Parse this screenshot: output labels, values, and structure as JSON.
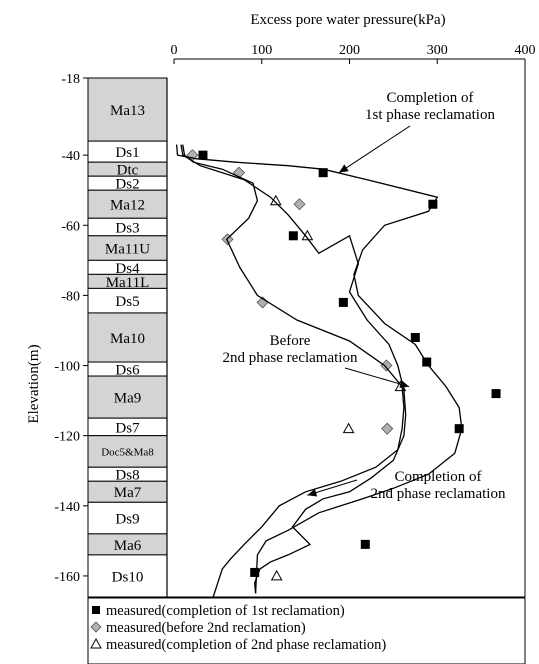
{
  "chart_data": {
    "type": "line",
    "title": "Excess pore water pressure(kPa)",
    "xlabel": "Excess pore water pressure(kPa)",
    "ylabel": "Elevation(m)",
    "xlim": [
      0,
      400
    ],
    "ylim": [
      -170,
      -18
    ],
    "x_ticks": [
      0,
      100,
      200,
      300,
      400
    ],
    "y_ticks": [
      -18,
      -40,
      -60,
      -80,
      -100,
      -120,
      -140,
      -160
    ],
    "x_tick_labels": [
      "0",
      "100",
      "200",
      "300",
      "400"
    ],
    "y_tick_labels": [
      "-18",
      "-40",
      "-60",
      "-80",
      "-100",
      "-120",
      "-140",
      "-160"
    ],
    "grid": false,
    "legend_position": "bottom",
    "strata": [
      {
        "name": "Ma13",
        "top": -18,
        "bottom": -36,
        "fill": "#d4d4d4"
      },
      {
        "name": "Ds1",
        "top": -36,
        "bottom": -42,
        "fill": "#ffffff"
      },
      {
        "name": "Dtc",
        "top": -42,
        "bottom": -46,
        "fill": "#d4d4d4"
      },
      {
        "name": "Ds2",
        "top": -46,
        "bottom": -50,
        "fill": "#ffffff"
      },
      {
        "name": "Ma12",
        "top": -50,
        "bottom": -58,
        "fill": "#d4d4d4"
      },
      {
        "name": "Ds3",
        "top": -58,
        "bottom": -63,
        "fill": "#ffffff"
      },
      {
        "name": "Ma11U",
        "top": -63,
        "bottom": -70,
        "fill": "#d4d4d4"
      },
      {
        "name": "Ds4",
        "top": -70,
        "bottom": -74,
        "fill": "#ffffff"
      },
      {
        "name": "Ma11L",
        "top": -74,
        "bottom": -78,
        "fill": "#d4d4d4"
      },
      {
        "name": "Ds5",
        "top": -78,
        "bottom": -85,
        "fill": "#ffffff"
      },
      {
        "name": "Ma10",
        "top": -85,
        "bottom": -99,
        "fill": "#d4d4d4"
      },
      {
        "name": "Ds6",
        "top": -99,
        "bottom": -103,
        "fill": "#ffffff"
      },
      {
        "name": "Ma9",
        "top": -103,
        "bottom": -115,
        "fill": "#d4d4d4"
      },
      {
        "name": "Ds7",
        "top": -115,
        "bottom": -120,
        "fill": "#ffffff"
      },
      {
        "name": "Doc5&Ma8",
        "top": -120,
        "bottom": -129,
        "fill": "#d4d4d4"
      },
      {
        "name": "Ds8",
        "top": -129,
        "bottom": -133,
        "fill": "#ffffff"
      },
      {
        "name": "Ma7",
        "top": -133,
        "bottom": -139,
        "fill": "#d4d4d4"
      },
      {
        "name": "Ds9",
        "top": -139,
        "bottom": -148,
        "fill": "#ffffff"
      },
      {
        "name": "Ma6",
        "top": -148,
        "bottom": -154,
        "fill": "#d4d4d4"
      },
      {
        "name": "Ds10",
        "top": -154,
        "bottom": -166,
        "fill": "#ffffff"
      }
    ],
    "series": [
      {
        "name": "measured(completion of 1st reclamation)",
        "kind": "scatter",
        "marker": "square",
        "points": [
          [
            33,
            -40
          ],
          [
            170,
            -45
          ],
          [
            295,
            -54
          ],
          [
            136,
            -63
          ],
          [
            193,
            -82
          ],
          [
            275,
            -92
          ],
          [
            288,
            -99
          ],
          [
            367,
            -108
          ],
          [
            325,
            -118
          ],
          [
            218,
            -151
          ],
          [
            92,
            -159
          ]
        ]
      },
      {
        "name": "measured(before 2nd reclamation)",
        "kind": "scatter",
        "marker": "diamond",
        "points": [
          [
            21,
            -40
          ],
          [
            74,
            -45
          ],
          [
            143,
            -54
          ],
          [
            61,
            -64
          ],
          [
            101,
            -82
          ],
          [
            242,
            -100
          ],
          [
            243,
            -118
          ]
        ]
      },
      {
        "name": "measured(completion of 2nd phase reclamation)",
        "kind": "scatter",
        "marker": "triangle",
        "points": [
          [
            116,
            -53
          ],
          [
            152,
            -63
          ],
          [
            258,
            -106
          ],
          [
            199,
            -118
          ],
          [
            117,
            -160
          ]
        ]
      },
      {
        "kind": "line",
        "points": [
          [
            3,
            -37
          ],
          [
            4,
            -40
          ],
          [
            25,
            -41
          ],
          [
            70,
            -42
          ],
          [
            130,
            -43
          ],
          [
            170,
            -44
          ],
          [
            220,
            -47
          ],
          [
            300,
            -52
          ],
          [
            290,
            -56
          ],
          [
            240,
            -60
          ],
          [
            215,
            -67
          ],
          [
            205,
            -74
          ],
          [
            210,
            -80
          ],
          [
            240,
            -88
          ],
          [
            275,
            -94
          ],
          [
            290,
            -100
          ],
          [
            310,
            -106
          ],
          [
            325,
            -112
          ],
          [
            328,
            -118
          ],
          [
            320,
            -125
          ],
          [
            290,
            -131
          ],
          [
            250,
            -135
          ],
          [
            215,
            -138
          ],
          [
            165,
            -142
          ],
          [
            130,
            -147
          ],
          [
            105,
            -150
          ],
          [
            95,
            -154
          ],
          [
            93,
            -165
          ]
        ]
      },
      {
        "kind": "line",
        "points": [
          [
            10,
            -37
          ],
          [
            12,
            -40
          ],
          [
            22,
            -42
          ],
          [
            55,
            -44
          ],
          [
            90,
            -48
          ],
          [
            95,
            -53
          ],
          [
            85,
            -58
          ],
          [
            60,
            -64
          ],
          [
            75,
            -72
          ],
          [
            95,
            -80
          ],
          [
            140,
            -87
          ],
          [
            200,
            -93
          ],
          [
            240,
            -100
          ],
          [
            260,
            -106
          ],
          [
            262,
            -112
          ],
          [
            260,
            -118
          ],
          [
            255,
            -124
          ],
          [
            230,
            -129
          ],
          [
            190,
            -133
          ],
          [
            150,
            -136
          ],
          [
            120,
            -140
          ],
          [
            100,
            -146
          ],
          [
            80,
            -151
          ],
          [
            65,
            -155
          ],
          [
            55,
            -158
          ],
          [
            42,
            -168
          ]
        ]
      },
      {
        "kind": "line",
        "points": [
          [
            8,
            -37
          ],
          [
            10,
            -40
          ],
          [
            30,
            -43
          ],
          [
            80,
            -47
          ],
          [
            110,
            -52
          ],
          [
            130,
            -57
          ],
          [
            150,
            -63
          ],
          [
            165,
            -68
          ],
          [
            200,
            -63
          ],
          [
            210,
            -71
          ],
          [
            200,
            -79
          ],
          [
            220,
            -87
          ],
          [
            245,
            -94
          ],
          [
            255,
            -100
          ],
          [
            262,
            -107
          ],
          [
            264,
            -114
          ],
          [
            262,
            -120
          ],
          [
            250,
            -127
          ],
          [
            225,
            -132
          ],
          [
            200,
            -136
          ],
          [
            170,
            -138
          ],
          [
            150,
            -141
          ],
          [
            135,
            -146
          ],
          [
            155,
            -151
          ],
          [
            130,
            -154
          ],
          [
            110,
            -156
          ],
          [
            98,
            -158
          ],
          [
            92,
            -162
          ],
          [
            93,
            -165
          ]
        ]
      }
    ],
    "annotations": [
      {
        "text_lines": [
          "Completion of",
          "1st phase reclamation"
        ],
        "target": [
          188,
          -45
        ]
      },
      {
        "text_lines": [
          "Before",
          "2nd phase reclamation"
        ],
        "target": [
          268,
          -106
        ]
      },
      {
        "text_lines": [
          "Completion of",
          "2nd phase reclamation"
        ],
        "target": [
          152,
          -137
        ]
      }
    ],
    "legend": [
      "measured(completion of 1st reclamation)",
      "measured(before 2nd reclamation)",
      "measured(completion of 2nd phase reclamation)"
    ]
  }
}
